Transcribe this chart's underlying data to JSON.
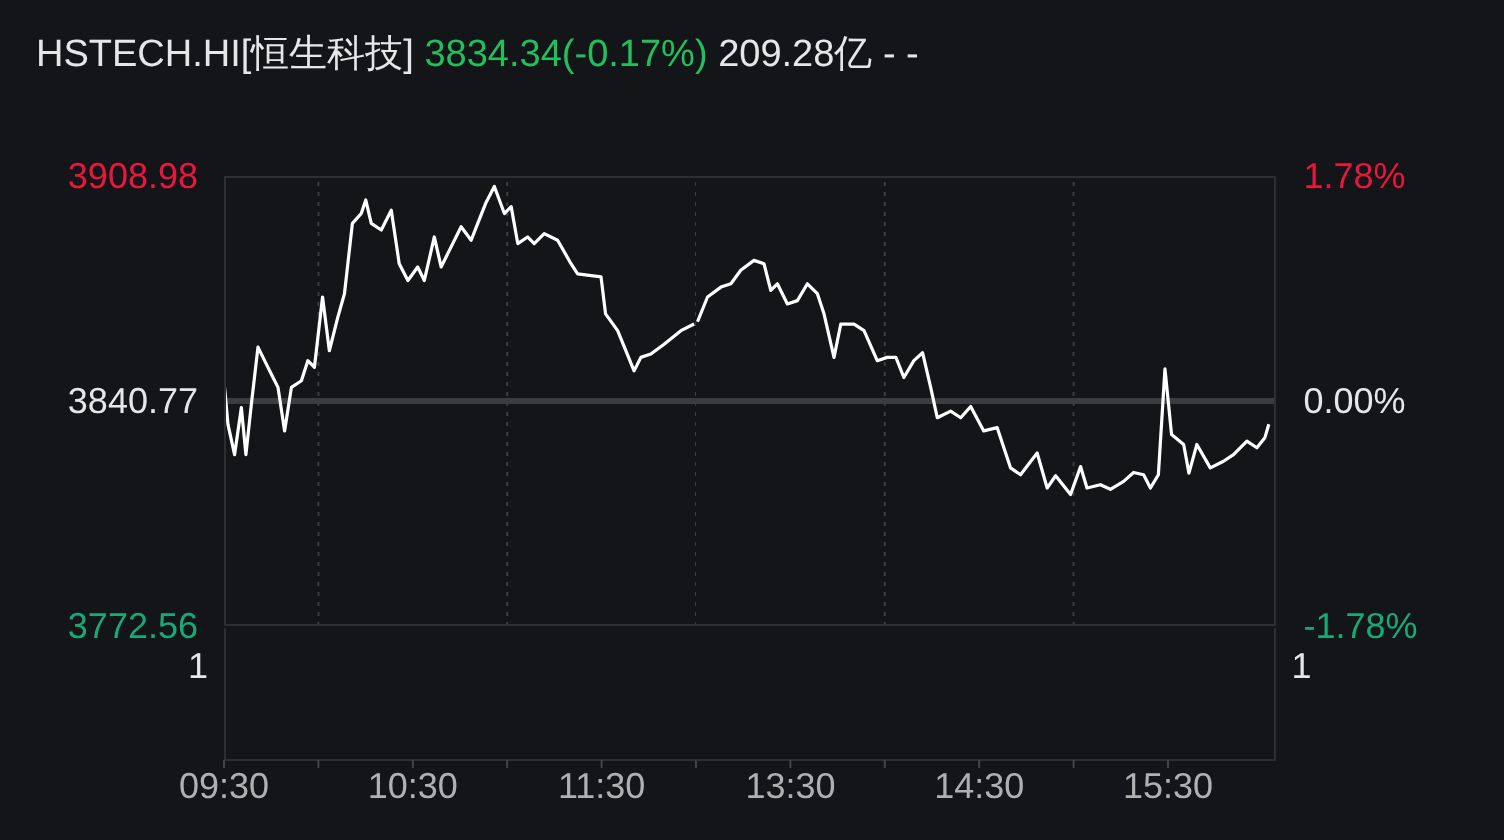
{
  "chart_data": [
    {
      "type": "line",
      "title": "HSTECH.HI[恒生科技]",
      "subtitle": "3834.34(-0.17%)",
      "annotations": [
        "209.28亿 - -",
        "1"
      ],
      "x": [
        9.503,
        9.521,
        9.556,
        9.592,
        9.616,
        9.645,
        9.68,
        9.715,
        9.751,
        9.786,
        9.821,
        9.857,
        9.91,
        9.944,
        9.979,
        10.022,
        10.058,
        10.103,
        10.138,
        10.18,
        10.227,
        10.251,
        10.28,
        10.333,
        10.386,
        10.428,
        10.474,
        10.526,
        10.561,
        10.614,
        10.65,
        10.703,
        10.756,
        10.809,
        10.844,
        10.886,
        10.932,
        10.985,
        11.021,
        11.056,
        11.108,
        11.143,
        11.196,
        11.267,
        11.338,
        11.373,
        11.497,
        11.521,
        11.585,
        11.672,
        11.708,
        11.761,
        11.831,
        11.92,
        11.99
      ],
      "series": [
        {
          "color": "#ffffff",
          "values": [
            3844.9,
            3833.7,
            3824.5,
            3838.8,
            3824.5,
            3839.8,
            3857.1,
            3853.0,
            3848.9,
            3844.9,
            3831.7,
            3844.9,
            3846.9,
            3853.0,
            3851.0,
            3872.3,
            3856.0,
            3866.2,
            3873.3,
            3894.6,
            3897.6,
            3901.7,
            3894.6,
            3892.6,
            3898.6,
            3882.4,
            3877.3,
            3881.4,
            3877.3,
            3890.5,
            3881.4,
            3887.5,
            3893.6,
            3889.5,
            3894.6,
            3900.7,
            3905.8,
            3897.6,
            3899.7,
            3888.5,
            3890.5,
            3888.5,
            3891.5,
            3889.5,
            3882.4,
            3879.3,
            3878.4,
            3867.2,
            3862.1,
            3849.9,
            3854.0,
            3855.0,
            3858.0,
            3862.1,
            3864.1
          ]
        }
      ],
      "xlim": [
        9.5,
        12
      ],
      "xticks": [
        {
          "value": 9.5,
          "label": "09:30"
        },
        {
          "value": 10,
          "label": null
        },
        {
          "value": 10.5,
          "label": "10:30"
        },
        {
          "value": 11,
          "label": null
        },
        {
          "value": 11.5,
          "label": "11:30"
        },
        {
          "value": 12,
          "label": null
        }
      ],
      "ylim": [
        3772.56,
        3908.98
      ],
      "yticks": [
        3772.56,
        3840.77,
        3908.98
      ],
      "ref_lines": [
        {
          "axis": "y",
          "value": 3840.77,
          "color": "#3a3c41"
        }
      ],
      "grid": "x",
      "marker": "none",
      "line_style": "solid"
    },
    {
      "type": "line",
      "annotations": [
        "1"
      ],
      "x": [
        13.008,
        13.061,
        13.132,
        13.185,
        13.237,
        13.307,
        13.36,
        13.396,
        13.431,
        13.484,
        13.537,
        13.59,
        13.643,
        13.678,
        13.731,
        13.767,
        13.837,
        13.89,
        13.96,
        14.013,
        14.059,
        14.101,
        14.154,
        14.2,
        14.243,
        14.278,
        14.349,
        14.402,
        14.455,
        14.524,
        14.595,
        14.666,
        14.719,
        14.807,
        14.86,
        14.905,
        14.984,
        15.037,
        15.071,
        15.142,
        15.195,
        15.265,
        15.318,
        15.371,
        15.407,
        15.449,
        15.484,
        15.519,
        15.583,
        15.611,
        15.653,
        15.724,
        15.794,
        15.847,
        15.918,
        15.971,
        16.013,
        16.034
      ],
      "series": [
        {
          "color": "#ffffff",
          "values": [
            3864.8,
            3872.3,
            3875.3,
            3876.3,
            3880.4,
            3883.4,
            3882.4,
            3874.3,
            3876.3,
            3870.2,
            3871.2,
            3876.3,
            3873.3,
            3867.2,
            3854.0,
            3864.1,
            3864.1,
            3862.1,
            3853.0,
            3854.0,
            3854.0,
            3847.9,
            3853.0,
            3855.4,
            3844.9,
            3835.7,
            3837.7,
            3835.7,
            3839.1,
            3831.7,
            3832.7,
            3820.5,
            3818.4,
            3825.0,
            3814.4,
            3818.1,
            3812.4,
            3820.9,
            3814.4,
            3815.4,
            3814.0,
            3816.4,
            3819.1,
            3818.4,
            3814.4,
            3818.4,
            3850.5,
            3830.6,
            3827.6,
            3818.9,
            3827.6,
            3820.5,
            3822.5,
            3824.5,
            3828.6,
            3826.6,
            3829.6,
            3833.7
          ]
        }
      ],
      "xlim": [
        13,
        16.07
      ],
      "xticks": [
        {
          "value": 13.5,
          "label": "13:30"
        },
        {
          "value": 14,
          "label": null
        },
        {
          "value": 14.5,
          "label": "14:30"
        },
        {
          "value": 15,
          "label": null
        },
        {
          "value": 15.5,
          "label": "15:30"
        }
      ],
      "ylim": [
        3772.56,
        3908.98
      ],
      "y2lim": [
        -1.78,
        1.78
      ],
      "y2ticks": [
        {
          "value": -1.78,
          "label": "-1.78%"
        },
        {
          "value": 0,
          "label": "0.00%"
        },
        {
          "value": 1.78,
          "label": "1.78%"
        }
      ],
      "tick_labels": "x",
      "ref_lines": [
        {
          "axis": "y",
          "value": 3840.77,
          "color": "#3a3c41"
        }
      ],
      "grid": "x",
      "marker": "none",
      "line_style": "solid"
    }
  ]
}
